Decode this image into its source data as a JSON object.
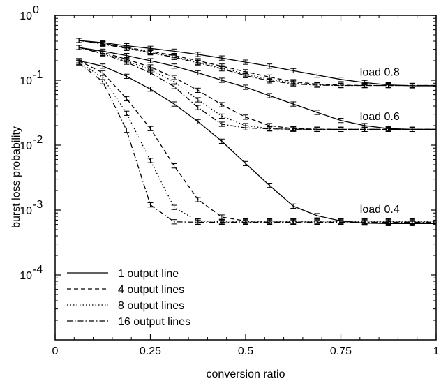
{
  "chart_data": {
    "type": "line",
    "xlabel": "conversion ratio",
    "ylabel": "burst loss probability",
    "xlim": [
      0,
      1
    ],
    "ylim": [
      1e-05,
      1
    ],
    "yscale": "log",
    "grid": false,
    "legend_position": "bottom-left",
    "x_ticks": [
      {
        "value": 0,
        "label": "0"
      },
      {
        "value": 0.25,
        "label": "0.25"
      },
      {
        "value": 0.5,
        "label": "0.5"
      },
      {
        "value": 0.75,
        "label": "0.75"
      },
      {
        "value": 1,
        "label": "1"
      }
    ],
    "y_ticks": [
      {
        "value": 1,
        "base": "10",
        "exp": "0"
      },
      {
        "value": 0.1,
        "base": "10",
        "exp": "-1"
      },
      {
        "value": 0.01,
        "base": "10",
        "exp": "-2"
      },
      {
        "value": 0.001,
        "base": "10",
        "exp": "-3"
      },
      {
        "value": 0.0001,
        "base": "10",
        "exp": "-4"
      }
    ],
    "legend": [
      {
        "label": "1 output line",
        "dash": "solid"
      },
      {
        "label": "4 output lines",
        "dash": "dashed"
      },
      {
        "label": "8 output lines",
        "dash": "dotted"
      },
      {
        "label": "16 output lines",
        "dash": "dashdot"
      }
    ],
    "annotations": [
      {
        "text": "load 0.8",
        "x": 0.8,
        "y": 0.118
      },
      {
        "text": "load 0.6",
        "x": 0.8,
        "y": 0.0245
      },
      {
        "text": "load 0.4",
        "x": 0.8,
        "y": 0.00091
      }
    ],
    "x": [
      0.0625,
      0.125,
      0.1875,
      0.25,
      0.3125,
      0.375,
      0.4375,
      0.5,
      0.5625,
      0.625,
      0.6875,
      0.75,
      0.8125,
      0.875,
      0.9375,
      1.0
    ],
    "series": [
      {
        "load": "0.8",
        "dash": "solid",
        "values": [
          0.41,
          0.38,
          0.34,
          0.31,
          0.28,
          0.25,
          0.22,
          0.19,
          0.165,
          0.14,
          0.12,
          0.103,
          0.092,
          0.085,
          0.082,
          0.082
        ]
      },
      {
        "load": "0.8",
        "dash": "dashed",
        "values": [
          0.41,
          0.37,
          0.32,
          0.28,
          0.24,
          0.2,
          0.165,
          0.135,
          0.112,
          0.095,
          0.087,
          0.084,
          0.083,
          0.083,
          0.083,
          0.083
        ]
      },
      {
        "load": "0.8",
        "dash": "dotted",
        "values": [
          0.41,
          0.365,
          0.315,
          0.27,
          0.23,
          0.19,
          0.155,
          0.125,
          0.103,
          0.091,
          0.085,
          0.083,
          0.083,
          0.083,
          0.083,
          0.083
        ]
      },
      {
        "load": "0.8",
        "dash": "dashdot",
        "values": [
          0.41,
          0.36,
          0.31,
          0.265,
          0.225,
          0.185,
          0.15,
          0.118,
          0.098,
          0.088,
          0.084,
          0.083,
          0.083,
          0.083,
          0.083,
          0.083
        ]
      },
      {
        "load": "0.6",
        "dash": "solid",
        "values": [
          0.32,
          0.28,
          0.24,
          0.2,
          0.165,
          0.13,
          0.1,
          0.078,
          0.058,
          0.043,
          0.032,
          0.024,
          0.02,
          0.018,
          0.0175,
          0.0175
        ]
      },
      {
        "load": "0.6",
        "dash": "dashed",
        "values": [
          0.32,
          0.27,
          0.21,
          0.16,
          0.11,
          0.07,
          0.042,
          0.027,
          0.02,
          0.018,
          0.0176,
          0.0175,
          0.0175,
          0.0175,
          0.0175,
          0.0175
        ]
      },
      {
        "load": "0.6",
        "dash": "dotted",
        "values": [
          0.32,
          0.26,
          0.2,
          0.145,
          0.095,
          0.05,
          0.028,
          0.02,
          0.018,
          0.0176,
          0.0175,
          0.0175,
          0.0175,
          0.0175,
          0.0175,
          0.0175
        ]
      },
      {
        "load": "0.6",
        "dash": "dashdot",
        "values": [
          0.32,
          0.255,
          0.19,
          0.13,
          0.08,
          0.038,
          0.021,
          0.0185,
          0.0178,
          0.0176,
          0.0175,
          0.0175,
          0.0175,
          0.0175,
          0.0175,
          0.0175
        ]
      },
      {
        "load": "0.4",
        "dash": "solid",
        "values": [
          0.2,
          0.165,
          0.115,
          0.073,
          0.043,
          0.023,
          0.0115,
          0.0052,
          0.0024,
          0.00115,
          0.00082,
          0.00068,
          0.00063,
          0.00062,
          0.00062,
          0.00062
        ]
      },
      {
        "load": "0.4",
        "dash": "dashed",
        "values": [
          0.2,
          0.13,
          0.052,
          0.018,
          0.0048,
          0.00145,
          0.00078,
          0.00068,
          0.00068,
          0.00068,
          0.00068,
          0.00068,
          0.00068,
          0.00068,
          0.00068,
          0.00068
        ]
      },
      {
        "load": "0.4",
        "dash": "dotted",
        "values": [
          0.19,
          0.11,
          0.031,
          0.0058,
          0.0011,
          0.00068,
          0.00066,
          0.00066,
          0.00066,
          0.00066,
          0.00066,
          0.00066,
          0.00066,
          0.00066,
          0.00066,
          0.00066
        ]
      },
      {
        "load": "0.4",
        "dash": "dashdot",
        "values": [
          0.185,
          0.095,
          0.017,
          0.0012,
          0.00066,
          0.00065,
          0.00065,
          0.00065,
          0.00065,
          0.00065,
          0.00065,
          0.00065,
          0.00065,
          0.00065,
          0.00065,
          0.00065
        ]
      }
    ]
  }
}
